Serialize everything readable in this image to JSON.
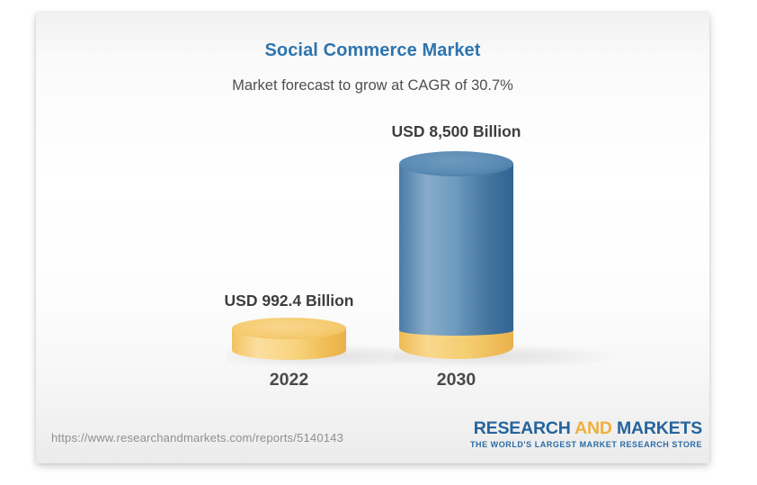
{
  "chart_data": {
    "type": "bar",
    "title": "Social Commerce Market",
    "subtitle": "Market forecast to grow at CAGR of 30.7%",
    "categories": [
      "2022",
      "2030"
    ],
    "values": [
      992.4,
      8500
    ],
    "unit": "USD Billion",
    "value_labels": [
      "USD 992.4 Billion",
      "USD 8,500 Billion"
    ],
    "cagr_percent": 30.7,
    "bar_style": "3d-cylinder",
    "legend": "none",
    "axes": "none",
    "grid": false,
    "bar_colors": {
      "bar_2022": "#f6cc72",
      "bar_2030": "#5b8cb5",
      "bar_2030_base_segment": "#f3c767"
    },
    "title_color": "#2e74ae"
  },
  "footer": {
    "report_url": "https://www.researchandmarkets.com/reports/5140143",
    "brand": {
      "word1": "RESEARCH",
      "word2": "AND",
      "word3": "MARKETS",
      "tagline": "THE WORLD'S LARGEST MARKET RESEARCH STORE",
      "color_primary": "#24649d",
      "color_accent": "#eeb03c"
    }
  }
}
